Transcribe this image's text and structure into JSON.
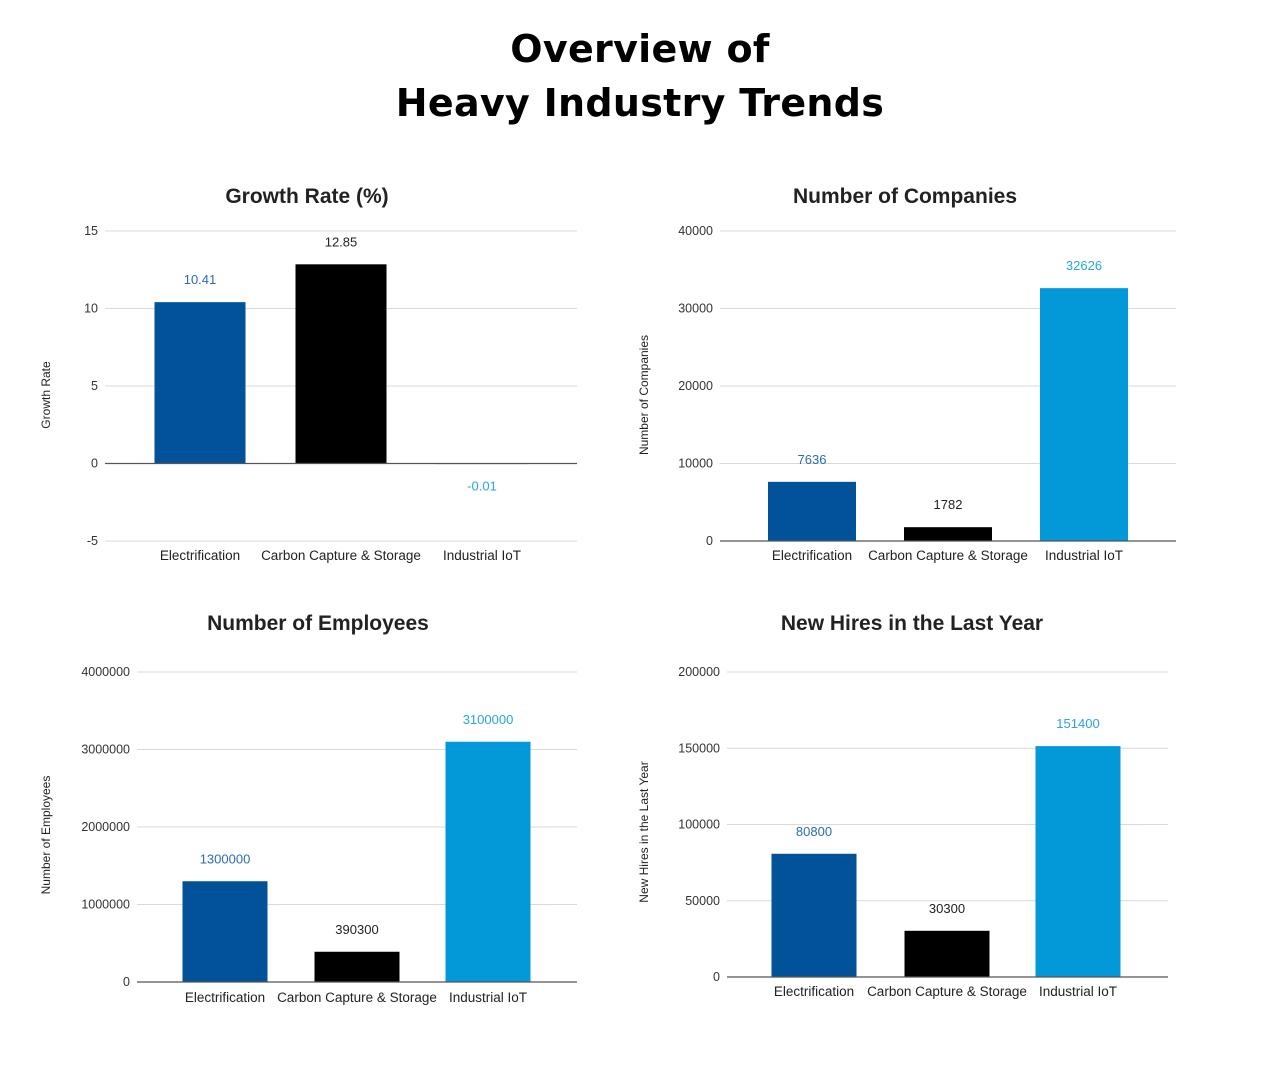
{
  "title_line1": "Overview of",
  "title_line2": "Heavy Industry Trends",
  "colors": {
    "Electrification": "#02529a",
    "Carbon Capture & Storage": "#000000",
    "Industrial IoT": "#0399d9"
  },
  "label_colors": {
    "Electrification": "#2c6cb0",
    "Carbon Capture & Storage": "#222222",
    "Industrial IoT": "#27a6df"
  },
  "chart_data": [
    {
      "type": "bar",
      "title": "Growth Rate (%)",
      "xlabel": "",
      "ylabel": "Growth Rate",
      "categories": [
        "Electrification",
        "Carbon Capture & Storage",
        "Industrial IoT"
      ],
      "values": [
        10.41,
        12.85,
        -0.01
      ],
      "value_labels": [
        "10.41",
        "12.85",
        "-0.01"
      ],
      "ylim": [
        -5,
        15
      ],
      "yticks": [
        "-5",
        "0",
        "5",
        "10",
        "15"
      ],
      "grid": true,
      "legend": "none"
    },
    {
      "type": "bar",
      "title": "Number of Companies",
      "xlabel": "",
      "ylabel": "Number of Companies",
      "categories": [
        "Electrification",
        "Carbon Capture & Storage",
        "Industrial IoT"
      ],
      "values": [
        7636,
        1782,
        32626
      ],
      "value_labels": [
        "7636",
        "1782",
        "32626"
      ],
      "ylim": [
        0,
        40000
      ],
      "yticks": [
        "0",
        "10000",
        "20000",
        "30000",
        "40000"
      ],
      "grid": true,
      "legend": "none"
    },
    {
      "type": "bar",
      "title": "Number of Employees",
      "xlabel": "",
      "ylabel": "Number of Employees",
      "categories": [
        "Electrification",
        "Carbon Capture & Storage",
        "Industrial IoT"
      ],
      "values": [
        1300000,
        390300,
        3100000
      ],
      "value_labels": [
        "1300000",
        "390300",
        "3100000"
      ],
      "ylim": [
        0,
        4000000
      ],
      "yticks": [
        "0",
        "1000000",
        "2000000",
        "3000000",
        "4000000"
      ],
      "grid": true,
      "legend": "none"
    },
    {
      "type": "bar",
      "title": "New Hires in the Last Year",
      "xlabel": "",
      "ylabel": "New Hires in the Last Year",
      "categories": [
        "Electrification",
        "Carbon Capture & Storage",
        "Industrial IoT"
      ],
      "values": [
        80800,
        30300,
        151400
      ],
      "value_labels": [
        "80800",
        "30300",
        "151400"
      ],
      "ylim": [
        0,
        200000
      ],
      "yticks": [
        "0",
        "50000",
        "100000",
        "150000",
        "200000"
      ],
      "grid": true,
      "legend": "none"
    }
  ]
}
